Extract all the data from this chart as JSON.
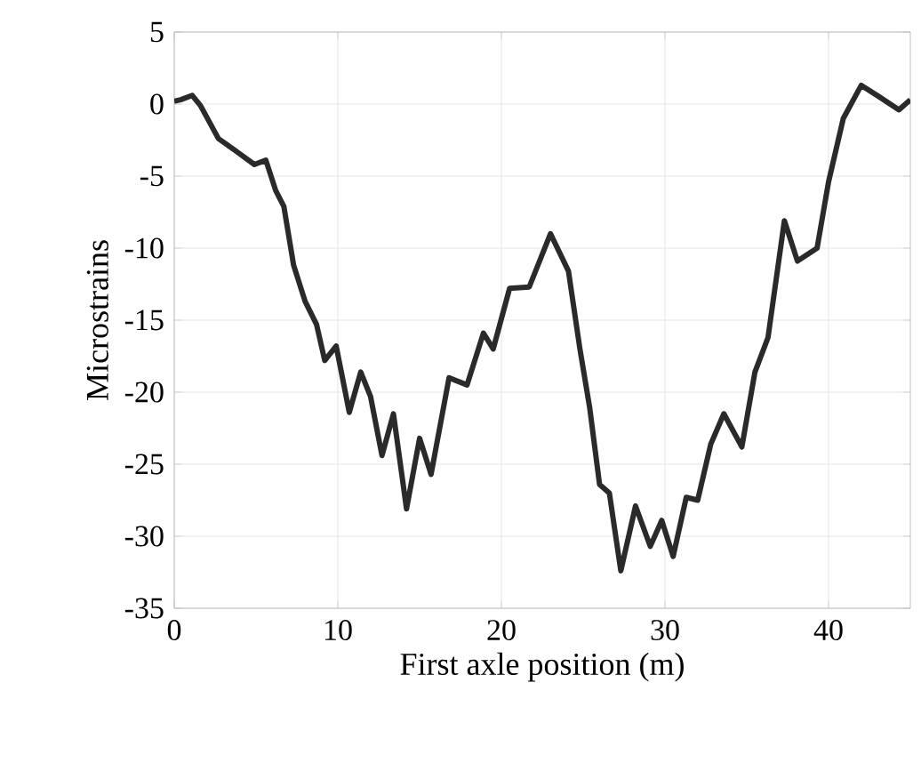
{
  "chart_data": {
    "type": "line",
    "xlabel": "First axle position (m)",
    "ylabel": "Microstrains",
    "x": [
      0,
      0.4,
      1.1,
      1.6,
      2.7,
      3.7,
      4.9,
      5.6,
      6.2,
      6.7,
      7.3,
      8.0,
      8.7,
      9.2,
      9.9,
      10.7,
      11.4,
      12.0,
      12.7,
      13.4,
      14.2,
      15.0,
      15.7,
      16.8,
      17.9,
      18.9,
      19.5,
      20.5,
      21.7,
      23.0,
      24.1,
      24.8,
      25.4,
      26.0,
      26.6,
      27.3,
      28.2,
      29.1,
      29.8,
      30.5,
      31.3,
      32.0,
      32.8,
      33.6,
      34.7,
      35.5,
      36.3,
      37.3,
      38.1,
      39.3,
      40.0,
      40.9,
      42.0,
      43.1,
      44.3,
      45
    ],
    "series": [
      {
        "color": "#2a2a2a",
        "values": [
          0.2,
          0.3,
          0.6,
          -0.1,
          -2.4,
          -3.2,
          -4.2,
          -3.9,
          -6.0,
          -7.1,
          -11.2,
          -13.7,
          -15.3,
          -17.8,
          -16.8,
          -21.4,
          -18.6,
          -20.3,
          -24.4,
          -21.5,
          -28.1,
          -23.2,
          -25.7,
          -19.0,
          -19.5,
          -15.9,
          -17.0,
          -12.8,
          -12.7,
          -9.0,
          -11.6,
          -17.0,
          -21.1,
          -26.4,
          -27.0,
          -32.4,
          -27.9,
          -30.7,
          -28.9,
          -31.4,
          -27.3,
          -27.5,
          -23.6,
          -21.5,
          -23.8,
          -18.6,
          -16.2,
          -8.1,
          -10.9,
          -10.0,
          -5.4,
          -1.0,
          1.3,
          0.5,
          -0.4,
          0.3
        ]
      }
    ],
    "xlim": [
      0,
      45
    ],
    "ylim": [
      -35,
      5
    ],
    "xticks": [
      0,
      10,
      20,
      30,
      40
    ],
    "yticks": [
      -35,
      -30,
      -25,
      -20,
      -15,
      -10,
      -5,
      0,
      5
    ],
    "grid": true,
    "marker": "none",
    "line_style": "solid"
  }
}
